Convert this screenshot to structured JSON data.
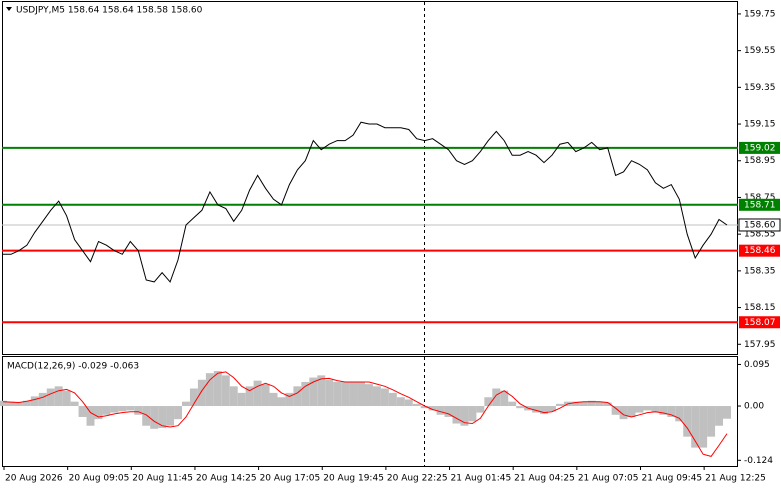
{
  "chart_data": [
    {
      "type": "line",
      "header": "USDJPY,M5  158.64 158.64 158.58 158.60",
      "color": "#000000",
      "values": [
        158.44,
        158.44,
        158.46,
        158.49,
        158.56,
        158.62,
        158.68,
        158.73,
        158.65,
        158.52,
        158.46,
        158.4,
        158.51,
        158.49,
        158.46,
        158.44,
        158.51,
        158.46,
        158.3,
        158.29,
        158.34,
        158.29,
        158.41,
        158.6,
        158.64,
        158.68,
        158.78,
        158.71,
        158.69,
        158.62,
        158.68,
        158.79,
        158.87,
        158.8,
        158.74,
        158.71,
        158.82,
        158.9,
        158.95,
        159.06,
        159.01,
        159.04,
        159.06,
        159.06,
        159.09,
        159.16,
        159.15,
        159.15,
        159.13,
        159.13,
        159.13,
        159.12,
        159.07,
        159.06,
        159.07,
        159.04,
        159.01,
        158.95,
        158.93,
        158.95,
        159.0,
        159.06,
        159.11,
        159.06,
        158.98,
        158.98,
        159.0,
        158.98,
        158.94,
        158.98,
        159.04,
        159.05,
        159.0,
        159.02,
        159.05,
        159.01,
        159.02,
        158.87,
        158.89,
        158.95,
        158.93,
        158.9,
        158.83,
        158.8,
        158.82,
        158.74,
        158.55,
        158.42,
        158.49,
        158.55,
        158.63,
        158.6
      ],
      "x_labels": [
        "20 Aug 2026",
        "20 Aug 09:05",
        "20 Aug 11:45",
        "20 Aug 14:25",
        "20 Aug 17:05",
        "20 Aug 19:45",
        "20 Aug 22:25",
        "21 Aug 01:45",
        "21 Aug 04:25",
        "21 Aug 07:05",
        "21 Aug 09:45",
        "21 Aug 12:25"
      ],
      "ylim": [
        157.897,
        159.815
      ],
      "yticks": [
        159.75,
        159.55,
        159.35,
        159.15,
        158.95,
        158.75,
        158.55,
        158.35,
        158.15,
        157.95
      ],
      "grid": false,
      "levels": [
        {
          "value": 159.02,
          "color": "#008000"
        },
        {
          "value": 158.71,
          "color": "#008000"
        },
        {
          "value": 158.46,
          "color": "#ff0000"
        },
        {
          "value": 158.07,
          "color": "#ff0000"
        }
      ],
      "current_price": {
        "value": 158.6,
        "label": "158.60"
      }
    },
    {
      "type": "macd",
      "header": "MACD(12,26,9) -0.029 -0.063",
      "color": "#c0c0c0",
      "signal_color": "#ff0000",
      "values": [
        0.012,
        0.01,
        0.008,
        0.012,
        0.022,
        0.03,
        0.04,
        0.045,
        0.035,
        0.01,
        -0.025,
        -0.045,
        -0.03,
        -0.02,
        -0.015,
        -0.012,
        -0.01,
        -0.02,
        -0.045,
        -0.052,
        -0.05,
        -0.045,
        -0.03,
        0.01,
        0.04,
        0.06,
        0.075,
        0.08,
        0.07,
        0.045,
        0.03,
        0.045,
        0.058,
        0.05,
        0.03,
        0.02,
        0.03,
        0.045,
        0.055,
        0.065,
        0.07,
        0.06,
        0.055,
        0.055,
        0.055,
        0.055,
        0.05,
        0.045,
        0.04,
        0.03,
        0.02,
        0.015,
        0.005,
        -0.005,
        -0.01,
        -0.02,
        -0.025,
        -0.04,
        -0.045,
        -0.035,
        -0.015,
        0.02,
        0.04,
        0.035,
        0.01,
        -0.005,
        -0.01,
        -0.015,
        -0.018,
        -0.012,
        0.005,
        0.01,
        0.01,
        0.01,
        0.012,
        0.01,
        0.008,
        -0.02,
        -0.03,
        -0.025,
        -0.015,
        -0.01,
        -0.015,
        -0.02,
        -0.025,
        -0.035,
        -0.07,
        -0.095,
        -0.095,
        -0.07,
        -0.045,
        -0.029
      ],
      "signal": [
        0.01,
        0.009,
        0.008,
        0.011,
        0.015,
        0.02,
        0.028,
        0.035,
        0.038,
        0.03,
        0.01,
        -0.015,
        -0.025,
        -0.022,
        -0.018,
        -0.015,
        -0.013,
        -0.013,
        -0.02,
        -0.035,
        -0.045,
        -0.048,
        -0.045,
        -0.025,
        0.005,
        0.035,
        0.06,
        0.075,
        0.078,
        0.065,
        0.045,
        0.035,
        0.045,
        0.052,
        0.045,
        0.03,
        0.022,
        0.03,
        0.045,
        0.055,
        0.062,
        0.063,
        0.058,
        0.055,
        0.055,
        0.055,
        0.055,
        0.05,
        0.045,
        0.037,
        0.028,
        0.02,
        0.01,
        0.0,
        -0.008,
        -0.013,
        -0.018,
        -0.028,
        -0.038,
        -0.04,
        -0.028,
        0.0,
        0.025,
        0.035,
        0.022,
        0.005,
        -0.005,
        -0.01,
        -0.015,
        -0.013,
        -0.005,
        0.005,
        0.008,
        0.01,
        0.01,
        0.01,
        0.008,
        -0.005,
        -0.02,
        -0.025,
        -0.02,
        -0.015,
        -0.013,
        -0.016,
        -0.02,
        -0.028,
        -0.05,
        -0.08,
        -0.11,
        -0.115,
        -0.09,
        -0.063
      ],
      "ylim": [
        -0.137,
        0.112
      ],
      "yticks": [
        0.095,
        {
          "value": 0,
          "label": "0.00"
        },
        -0.124
      ]
    }
  ]
}
